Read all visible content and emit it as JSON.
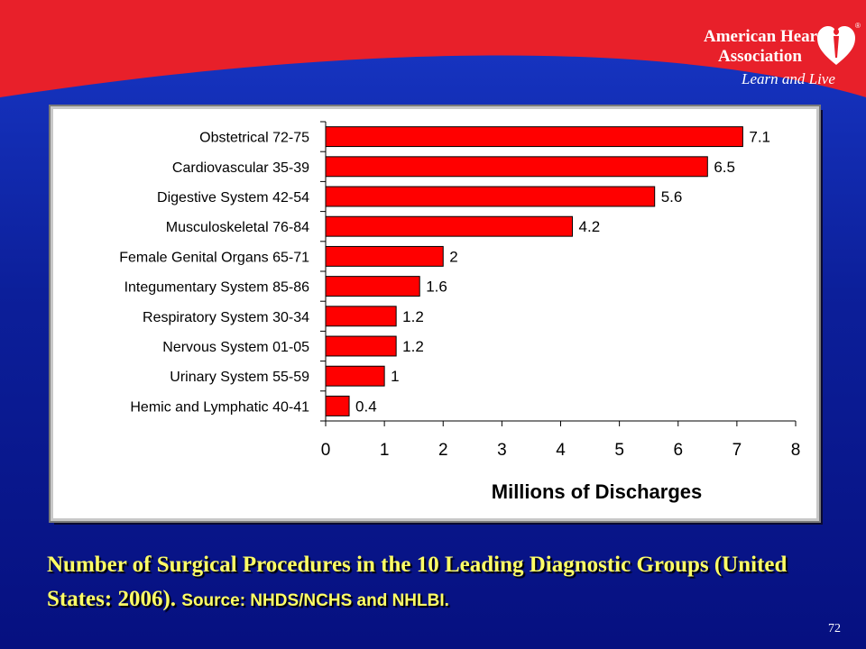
{
  "logo": {
    "line1": "American Heart",
    "line2": "Association",
    "tagline": "Learn and Live",
    "registered": "®"
  },
  "caption": {
    "title_part1": "Number of Surgical Procedures in the 10 Leading Diagnostic Groups",
    "title_part2": "(United States: 2006).",
    "source": "Source: NHDS/NCHS and NHLBI."
  },
  "page_number": "72",
  "colors": {
    "bar_fill": "#ff0000",
    "header_red": "#e8202a",
    "caption_yellow": "#ffff66",
    "background_blue": "#0c1f9a"
  },
  "chart_data": {
    "type": "bar",
    "orientation": "horizontal",
    "categories": [
      "Obstetrical 72-75",
      "Cardiovascular 35-39",
      "Digestive System 42-54",
      "Musculoskeletal 76-84",
      "Female Genital Organs 65-71",
      "Integumentary System 85-86",
      "Respiratory System 30-34",
      "Nervous System 01-05",
      "Urinary System 55-59",
      "Hemic and Lymphatic 40-41"
    ],
    "values": [
      7.1,
      6.5,
      5.6,
      4.2,
      2,
      1.6,
      1.2,
      1.2,
      1,
      0.4
    ],
    "value_labels": [
      "7.1",
      "6.5",
      "5.6",
      "4.2",
      "2",
      "1.6",
      "1.2",
      "1.2",
      "1",
      "0.4"
    ],
    "xlabel": "Millions of Discharges",
    "ylabel": "",
    "xlim": [
      0,
      8
    ],
    "xticks": [
      "0",
      "1",
      "2",
      "3",
      "4",
      "5",
      "6",
      "7",
      "8"
    ],
    "grid": false,
    "legend": "none"
  }
}
